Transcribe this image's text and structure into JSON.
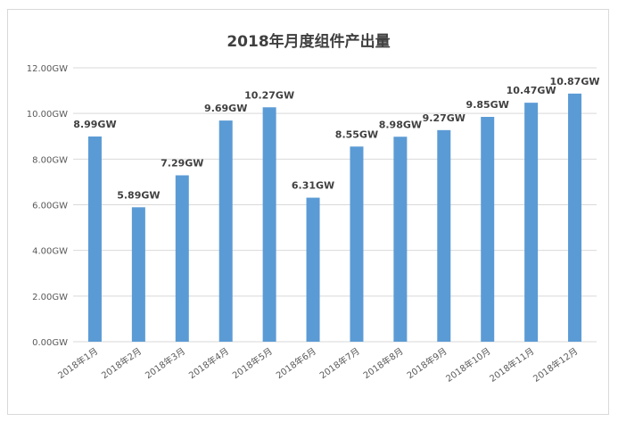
{
  "chart_data": {
    "type": "bar",
    "title": "2018年月度组件产出量",
    "xlabel": "",
    "ylabel": "",
    "ylim": [
      0,
      12
    ],
    "y_ticks": [
      "0.00GW",
      "2.00GW",
      "4.00GW",
      "6.00GW",
      "8.00GW",
      "10.00GW",
      "12.00GW"
    ],
    "categories": [
      "2018年1月",
      "2018年2月",
      "2018年3月",
      "2018年4月",
      "2018年5月",
      "2018年6月",
      "2018年7月",
      "2018年8月",
      "2018年9月",
      "2018年10月",
      "2018年11月",
      "2018年12月"
    ],
    "values": [
      8.99,
      5.89,
      7.29,
      9.69,
      10.27,
      6.31,
      8.55,
      8.98,
      9.27,
      9.85,
      10.47,
      10.87
    ],
    "data_labels": [
      "8.99GW",
      "5.89GW",
      "7.29GW",
      "9.69GW",
      "10.27GW",
      "6.31GW",
      "8.55GW",
      "8.98GW",
      "9.27GW",
      "9.85GW",
      "10.47GW",
      "10.87GW"
    ],
    "grid": true,
    "legend": "none",
    "bar_color": "#5b9bd5",
    "gridline_color": "#d9d9d9",
    "text_color": "#595959",
    "label_color": "#404040"
  }
}
